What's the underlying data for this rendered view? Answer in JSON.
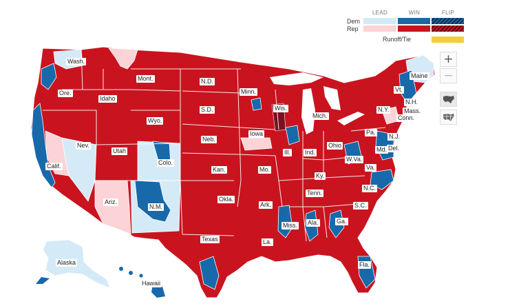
{
  "legend": {
    "col_lead": "LEAD",
    "col_win": "WIN",
    "col_flip": "FLIP",
    "row_dem": "Dem",
    "row_rep": "Rep",
    "runoff": "Runoff/Tie",
    "colors": {
      "dem_lead": "#d4eaf7",
      "dem_win": "#1769aa",
      "rep_lead": "#fcd3d6",
      "rep_win": "#c9141f",
      "flip_dem": "#1d3d6b",
      "flip_rep": "#7a1020",
      "runoff": "#f2cf35"
    }
  },
  "controls": {
    "zoom_in": "+",
    "zoom_out": "−"
  },
  "map": {
    "colors": {
      "rep_win": "#c9141f",
      "rep_lead": "#fcd3d6",
      "dem_win": "#1769aa",
      "dem_lead": "#d4eaf7",
      "border": "#ffffff"
    },
    "states": [
      {
        "id": "wa",
        "label": "Wash."
      },
      {
        "id": "or",
        "label": "Ore."
      },
      {
        "id": "ca",
        "label": "Calif."
      },
      {
        "id": "id",
        "label": "Idaho"
      },
      {
        "id": "mt",
        "label": "Mont."
      },
      {
        "id": "nv",
        "label": "Nev."
      },
      {
        "id": "ut",
        "label": "Utah"
      },
      {
        "id": "wy",
        "label": "Wyo."
      },
      {
        "id": "az",
        "label": "Ariz."
      },
      {
        "id": "co",
        "label": "Colo."
      },
      {
        "id": "nm",
        "label": "N.M."
      },
      {
        "id": "nd",
        "label": "N.D."
      },
      {
        "id": "sd",
        "label": "S.D."
      },
      {
        "id": "ne",
        "label": "Neb."
      },
      {
        "id": "ks",
        "label": "Kan."
      },
      {
        "id": "ok",
        "label": "Okla."
      },
      {
        "id": "tx",
        "label": "Texas"
      },
      {
        "id": "mn",
        "label": "Minn."
      },
      {
        "id": "ia",
        "label": "Iowa"
      },
      {
        "id": "mo",
        "label": "Mo."
      },
      {
        "id": "ar",
        "label": "Ark."
      },
      {
        "id": "la",
        "label": "La."
      },
      {
        "id": "wi",
        "label": "Wis."
      },
      {
        "id": "il",
        "label": "Ill."
      },
      {
        "id": "mi",
        "label": "Mich."
      },
      {
        "id": "in",
        "label": "Ind."
      },
      {
        "id": "oh",
        "label": "Ohio"
      },
      {
        "id": "ky",
        "label": "Ky."
      },
      {
        "id": "tn",
        "label": "Tenn."
      },
      {
        "id": "ms",
        "label": "Miss."
      },
      {
        "id": "al",
        "label": "Ala."
      },
      {
        "id": "ga",
        "label": "Ga."
      },
      {
        "id": "fl",
        "label": "Fla."
      },
      {
        "id": "sc",
        "label": "S.C."
      },
      {
        "id": "nc",
        "label": "N.C."
      },
      {
        "id": "va",
        "label": "Va."
      },
      {
        "id": "wv",
        "label": "W.Va."
      },
      {
        "id": "pa",
        "label": "Pa."
      },
      {
        "id": "ny",
        "label": "N.Y."
      },
      {
        "id": "vt",
        "label": "Vt."
      },
      {
        "id": "nh",
        "label": "N.H."
      },
      {
        "id": "me",
        "label": "Maine"
      },
      {
        "id": "ma",
        "label": "Mass."
      },
      {
        "id": "ct",
        "label": "Conn."
      },
      {
        "id": "nj",
        "label": "N.J."
      },
      {
        "id": "de",
        "label": "Del."
      },
      {
        "id": "md",
        "label": "Md."
      },
      {
        "id": "ak",
        "label": "Alaska"
      },
      {
        "id": "hi",
        "label": "Hawaii"
      }
    ]
  }
}
